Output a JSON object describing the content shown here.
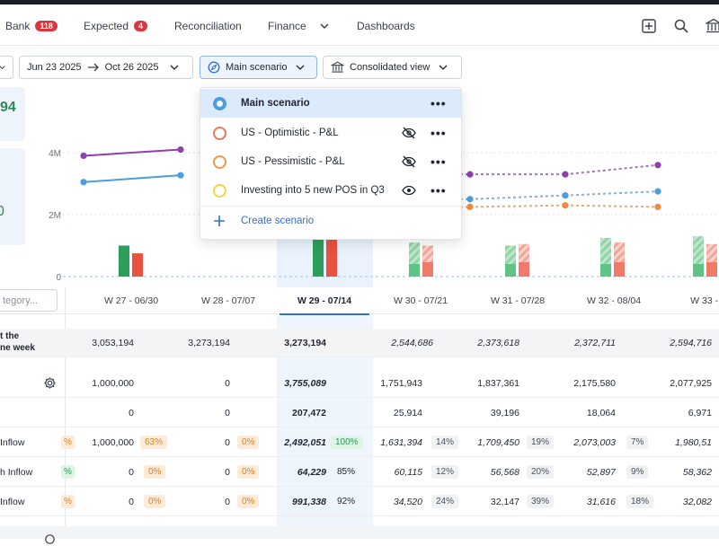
{
  "nav": {
    "bank_label": "Bank",
    "bank_count": "118",
    "expected_label": "Expected",
    "expected_count": "4",
    "reconciliation_label": "Reconciliation",
    "finance_label": "Finance",
    "dashboards_label": "Dashboards"
  },
  "filters": {
    "date_start": "Jun 23 2025",
    "date_end": "Oct 26 2025",
    "scenario_label": "Main scenario",
    "view_label": "Consolidated view"
  },
  "kpis": {
    "value1": "94",
    "value2": "0"
  },
  "chart_data": {
    "type": "bar",
    "categories": [
      "W 27 - 06/30",
      "W 28 - 07/07",
      "W 29 - 07/14",
      "W 30 - 07/21",
      "W 31 - 07/28",
      "W 32 - 08/04",
      "W 33 - 0"
    ],
    "y_ticks": [
      "4M",
      "2M",
      "0"
    ],
    "ylim": [
      0,
      4500000
    ],
    "series": [
      {
        "values": [
          1000000,
          0,
          1200000,
          1100000,
          1000000,
          1250000,
          1300000
        ]
      },
      {
        "values": [
          750000,
          0,
          1200000,
          1000000,
          1050000,
          1100000,
          1050000
        ]
      }
    ],
    "lines": [
      {
        "color": "#8e3fb0",
        "values": [
          3900000,
          4100000,
          null,
          3300000,
          3300000,
          3300000,
          3600000
        ]
      },
      {
        "color": "#4a9de0",
        "values": [
          3050000,
          3270000,
          null,
          2500000,
          2500000,
          2620000,
          2750000
        ]
      },
      {
        "color": "#f08a3c",
        "values": [
          null,
          null,
          null,
          2250000,
          2250000,
          2300000,
          2250000
        ]
      }
    ],
    "grid": true
  },
  "category_search": {
    "placeholder": "tegory..."
  },
  "weeks": [
    {
      "label": "W 27 - 06/30"
    },
    {
      "label": "W 28 - 07/07"
    },
    {
      "label": "W 29 - 07/14"
    },
    {
      "label": "W 30 - 07/21"
    },
    {
      "label": "W 31 - 07/28"
    },
    {
      "label": "W 32 - 08/04"
    },
    {
      "label": "W 33 - 0"
    }
  ],
  "rows": {
    "r0": {
      "label1": "t the",
      "label2": "ne week",
      "v": [
        "3,053,194",
        "3,273,194",
        "3,273,194",
        "2,544,686",
        "2,373,618",
        "2,372,711",
        "2,594,716"
      ]
    },
    "r1": {
      "v": [
        "1,000,000",
        "0",
        "3,755,089",
        "1,751,943",
        "1,837,361",
        "2,175,580",
        "2,077,925"
      ]
    },
    "r2": {
      "v": [
        "0",
        "0",
        "207,472",
        "25,914",
        "39,196",
        "18,064",
        "6,971"
      ]
    },
    "r3": {
      "label": "Inflow",
      "edge": "%",
      "v": [
        "1,000,000",
        "0",
        "2,492,051",
        "1,631,394",
        "1,709,450",
        "2,073,003",
        "1,980,51"
      ],
      "p": [
        "63%",
        "0%",
        "100%",
        "14%",
        "19%",
        "7%"
      ]
    },
    "r4": {
      "label": "h Inflow",
      "edge": "%",
      "v": [
        "0",
        "0",
        "64,229",
        "60,115",
        "56,568",
        "52,897",
        "58,362"
      ],
      "p": [
        "0%",
        "0%",
        "85%",
        "12%",
        "20%",
        "9%"
      ]
    },
    "r5": {
      "label": "Inflow",
      "edge": "%",
      "v": [
        "0",
        "0",
        "991,338",
        "34,520",
        "32,147",
        "31,616",
        "32,082"
      ],
      "p": [
        "0%",
        "0%",
        "92%",
        "24%",
        "39%",
        "18%"
      ]
    }
  },
  "dropdown": {
    "items": [
      {
        "label": "Main scenario",
        "color": "#4a9de0"
      },
      {
        "label": "US - Optimistic - P&L",
        "color": "#e07b5f"
      },
      {
        "label": "US - Pessimistic - P&L",
        "color": "#e89a55"
      },
      {
        "label": "Investing into 5 new POS in Q3",
        "color": "#f2d34f"
      }
    ],
    "create_label": "Create scenario",
    "more_glyph": "•••"
  }
}
